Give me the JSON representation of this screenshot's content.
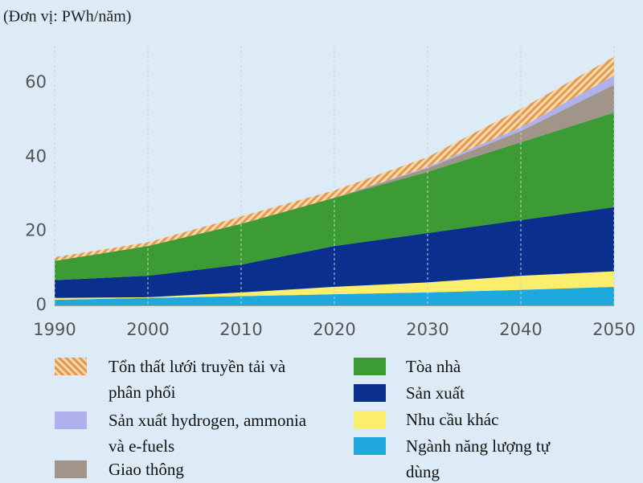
{
  "chart_data": {
    "type": "stacked-area",
    "unit_label": "(Đơn vị: PWh/năm)",
    "x": [
      1990,
      2000,
      2010,
      2020,
      2030,
      2040,
      2050
    ],
    "xlim": [
      1990,
      2050
    ],
    "xticks": [
      1990,
      2000,
      2010,
      2020,
      2030,
      2040,
      2050
    ],
    "ylim": [
      0,
      70
    ],
    "yticks": [
      0,
      20,
      40,
      60
    ],
    "grid": true,
    "series": [
      {
        "name": "Ngành năng lượng tự dùng",
        "color": "#1fa8dc",
        "values": [
          1.5,
          2,
          2.5,
          3,
          3.5,
          4.2,
          5
        ]
      },
      {
        "name": "Nhu cầu khác",
        "color": "#fbee6c",
        "values": [
          0.5,
          0.2,
          1,
          2,
          2.7,
          3.8,
          4.2
        ]
      },
      {
        "name": "Sản xuất",
        "color": "#0a2f8c",
        "values": [
          4.8,
          5.8,
          7.5,
          11,
          13.3,
          15,
          17.3
        ]
      },
      {
        "name": "Tòa nhà",
        "color": "#3c9b35",
        "values": [
          5.2,
          8,
          11,
          13,
          16.5,
          21,
          25.5
        ]
      },
      {
        "name": "Giao thông",
        "color": "#a19589",
        "values": [
          0,
          0,
          0,
          0,
          1,
          3,
          7.5
        ]
      },
      {
        "name": "Sản xuất hydrogen, ammonia và e-fuels",
        "color": "#aeb1ec",
        "values": [
          0,
          0,
          0,
          0,
          0.3,
          1,
          2.5
        ]
      },
      {
        "name": "Tổn thất lưới truyền tải và phân phối",
        "color": "#e39a4c",
        "hatch": true,
        "values": [
          1,
          1,
          2,
          2,
          2.7,
          5,
          5
        ]
      }
    ]
  }
}
